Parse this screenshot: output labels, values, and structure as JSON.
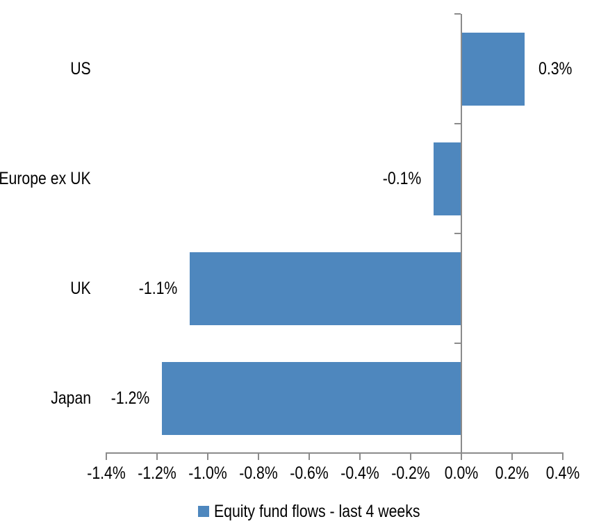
{
  "chart_data": {
    "type": "bar",
    "orientation": "horizontal",
    "title": "",
    "xlabel": "",
    "ylabel": "",
    "categories": [
      "US",
      "Europe ex UK",
      "UK",
      "Japan"
    ],
    "series": [
      {
        "name": "Equity fund flows - last 4 weeks",
        "values": [
          0.3,
          -0.1,
          -1.1,
          -1.2
        ],
        "values_precise": [
          0.25,
          -0.11,
          -1.07,
          -1.18
        ],
        "data_labels": [
          "0.3%",
          "-0.1%",
          "-1.1%",
          "-1.2%"
        ]
      }
    ],
    "x_axis": {
      "min": -1.4,
      "max": 0.4,
      "step": 0.2,
      "ticks": [
        -1.4,
        -1.2,
        -1.0,
        -0.8,
        -0.6,
        -0.4,
        -0.2,
        0.0,
        0.2,
        0.4
      ],
      "tick_labels": [
        "-1.4%",
        "-1.2%",
        "-1.0%",
        "-0.8%",
        "-0.6%",
        "-0.4%",
        "-0.2%",
        "0.0%",
        "0.2%",
        "0.4%"
      ]
    },
    "legend": {
      "position": "bottom",
      "label": "Equity fund flows - last 4 weeks"
    },
    "grid": false,
    "colors": {
      "bar": "#4E87BE",
      "axis": "#8B8B8B",
      "text": "#000000",
      "background": "#FFFFFF"
    }
  }
}
